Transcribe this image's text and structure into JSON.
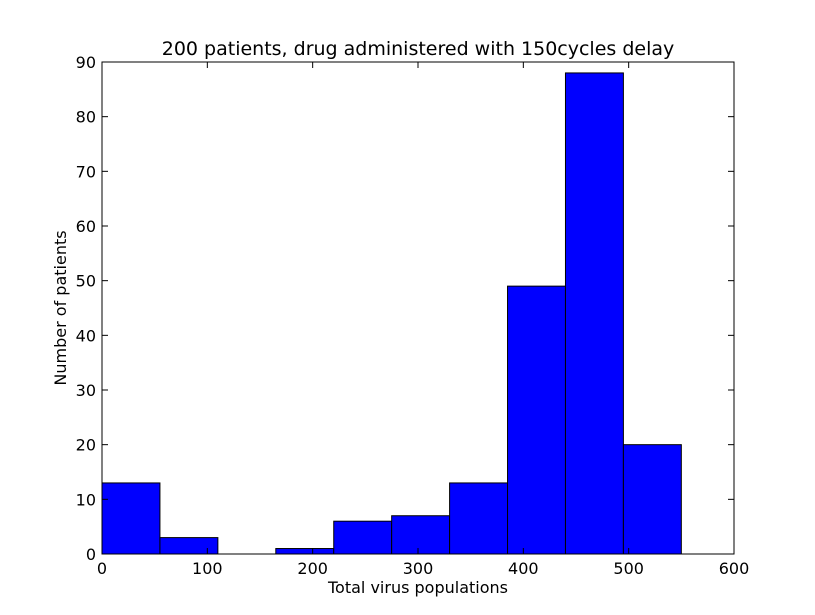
{
  "chart_data": {
    "type": "bar",
    "subtype": "histogram",
    "title": "200 patients, drug administered with 150cycles delay",
    "xlabel": "Total virus populations",
    "ylabel": "Number of patients",
    "xlim": [
      0,
      600
    ],
    "ylim": [
      0,
      90
    ],
    "xticks": [
      0,
      100,
      200,
      300,
      400,
      500,
      600
    ],
    "yticks": [
      0,
      10,
      20,
      30,
      40,
      50,
      60,
      70,
      80,
      90
    ],
    "bin_edges": [
      0,
      55,
      110,
      165,
      220,
      275,
      330,
      385,
      440,
      495,
      550
    ],
    "values": [
      13,
      3,
      0,
      1,
      6,
      7,
      13,
      49,
      88,
      20
    ],
    "bar_color": "#0000ff",
    "edge_color": "#000000",
    "grid": false,
    "legend": "none"
  }
}
